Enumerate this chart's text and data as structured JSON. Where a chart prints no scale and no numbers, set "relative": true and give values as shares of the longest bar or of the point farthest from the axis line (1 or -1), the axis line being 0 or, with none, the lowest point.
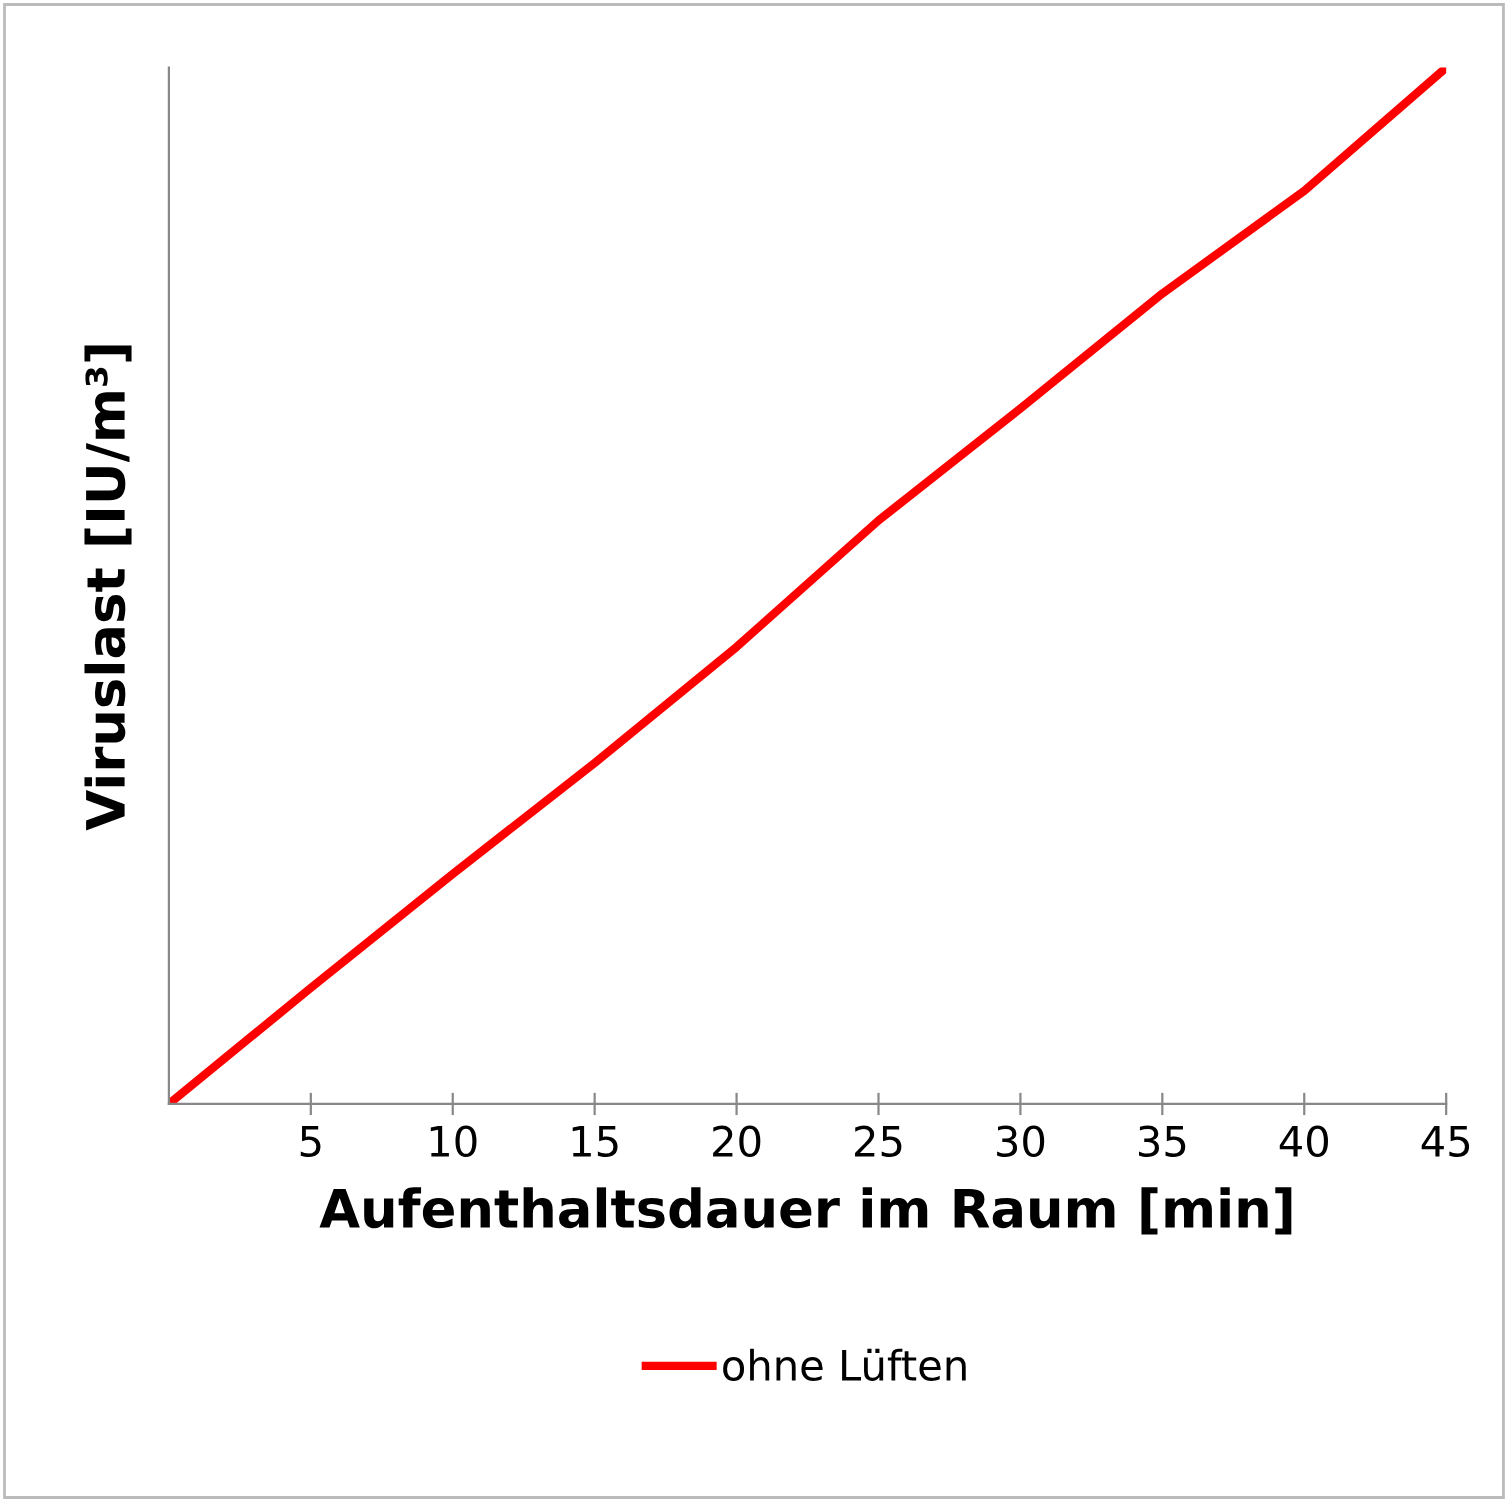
{
  "chart_data": {
    "type": "line",
    "xlabel": "Aufenthaltsdauer im Raum [min]",
    "ylabel": "Viruslast [IU/m³]",
    "relative": true,
    "x": [
      0,
      5,
      10,
      15,
      20,
      25,
      30,
      35,
      40,
      45
    ],
    "series": [
      {
        "name": "ohne Lüften",
        "color": "#ff0000",
        "values": [
          0,
          0.112,
          0.222,
          0.329,
          0.441,
          0.563,
          0.671,
          0.782,
          0.881,
          1
        ]
      }
    ],
    "xlim": [
      0,
      45
    ],
    "xticks": [
      5,
      10,
      15,
      20,
      25,
      30,
      35,
      40,
      45
    ],
    "grid": false,
    "legend": "bottom",
    "marker": "none",
    "line_style": "solid"
  }
}
